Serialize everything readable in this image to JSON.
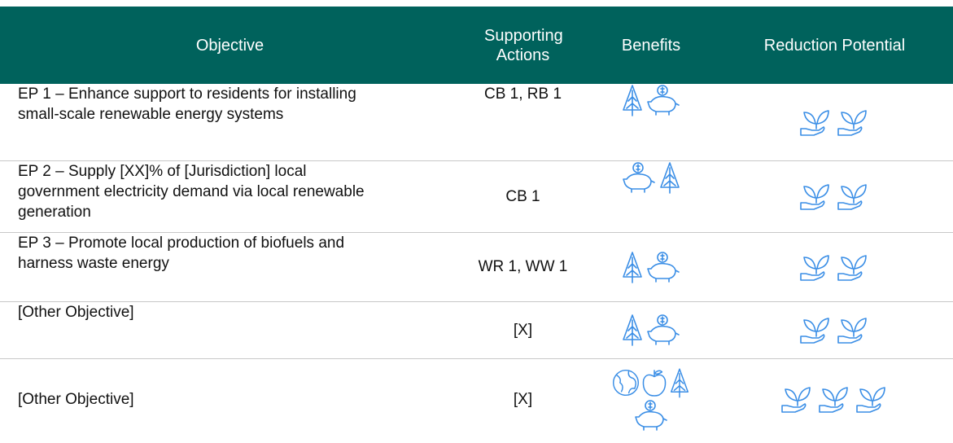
{
  "header": {
    "columns": [
      "Objective",
      "Supporting Actions",
      "Benefits",
      "Reduction Potential"
    ]
  },
  "rows": [
    {
      "objective": "EP 1 – Enhance support to residents for installing small-scale renewable energy systems",
      "actions": "CB 1, RB 1"
    },
    {
      "objective": "EP 2 – Supply [XX]% of [Jurisdiction] local government electricity demand via local renewable generation",
      "actions": "CB 1"
    },
    {
      "objective": "EP 3 – Promote local production of biofuels and harness waste energy",
      "actions": "WR 1, WW 1"
    },
    {
      "objective": "[Other Objective]",
      "actions": "[X]"
    },
    {
      "objective": "[Other Objective]",
      "actions": "[X]"
    }
  ]
}
